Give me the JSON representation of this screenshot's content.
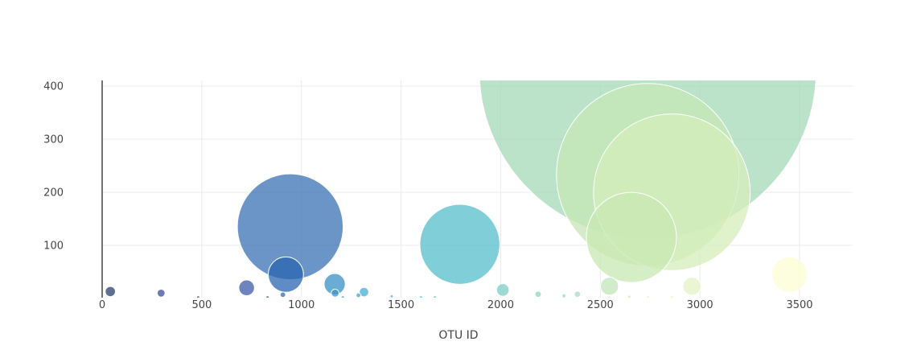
{
  "chart_data": {
    "type": "scatter",
    "subtype": "bubble",
    "title": "",
    "xlabel": "OTU ID",
    "ylabel": "",
    "xlim": [
      -50,
      3780
    ],
    "ylim": [
      0,
      412
    ],
    "x_ticks": [
      0,
      500,
      1000,
      1500,
      2000,
      2500,
      3000,
      3500
    ],
    "y_ticks": [
      100,
      200,
      300,
      400
    ],
    "x_tick_labels": [
      "0",
      "500",
      "1000",
      "1500",
      "2000",
      "2500",
      "3000",
      "3500"
    ],
    "y_tick_labels": [
      "100",
      "200",
      "300",
      "400"
    ],
    "grid": true,
    "colorscale": "YlGnBu",
    "points": [
      {
        "x": 41,
        "y": 13,
        "color": "#2a3f6e"
      },
      {
        "x": 296,
        "y": 10,
        "color": "#3a4e98"
      },
      {
        "x": 482,
        "y": 2,
        "color": "#3a56a0"
      },
      {
        "x": 725,
        "y": 20,
        "color": "#3d5ba7"
      },
      {
        "x": 830,
        "y": 2,
        "color": "#355fa6"
      },
      {
        "x": 944,
        "y": 135,
        "color": "#3a72b4"
      },
      {
        "x": 907,
        "y": 7,
        "color": "#346bb0"
      },
      {
        "x": 922,
        "y": 45,
        "color": "#2a66b0"
      },
      {
        "x": 1167,
        "y": 27,
        "color": "#3890c4"
      },
      {
        "x": 1169,
        "y": 10,
        "color": "#3d96c8"
      },
      {
        "x": 1208,
        "y": 2,
        "color": "#40a0cc"
      },
      {
        "x": 1286,
        "y": 6,
        "color": "#42a6cf"
      },
      {
        "x": 1314,
        "y": 12,
        "color": "#48aed2"
      },
      {
        "x": 1453,
        "y": 4,
        "color": "#4cb3d2"
      },
      {
        "x": 1600,
        "y": 2,
        "color": "#55bcd0"
      },
      {
        "x": 1670,
        "y": 2,
        "color": "#5ec2cf"
      },
      {
        "x": 1795,
        "y": 102,
        "color": "#56bec9"
      },
      {
        "x": 2011,
        "y": 16,
        "color": "#7ccdc4"
      },
      {
        "x": 2188,
        "y": 8,
        "color": "#8fd4c0"
      },
      {
        "x": 2318,
        "y": 5,
        "color": "#9dd8bd"
      },
      {
        "x": 2385,
        "y": 8,
        "color": "#a7dcba"
      },
      {
        "x": 2738,
        "y": 430,
        "color": "#a3dab8"
      },
      {
        "x": 2546,
        "y": 23,
        "color": "#c2e6b8"
      },
      {
        "x": 2645,
        "y": 3,
        "color": "#c8e8b7"
      },
      {
        "x": 2738,
        "y": 233,
        "color": "#c6e7b6"
      },
      {
        "x": 2859,
        "y": 200,
        "color": "#d5edbb"
      },
      {
        "x": 2656,
        "y": 115,
        "color": "#c8e8b2"
      },
      {
        "x": 2960,
        "y": 23,
        "color": "#e3f2c6"
      },
      {
        "x": 2740,
        "y": 2,
        "color": "#dff0c4"
      },
      {
        "x": 2860,
        "y": 2,
        "color": "#e8f5cc"
      },
      {
        "x": 3450,
        "y": 45,
        "color": "#fbfdd2"
      }
    ]
  }
}
